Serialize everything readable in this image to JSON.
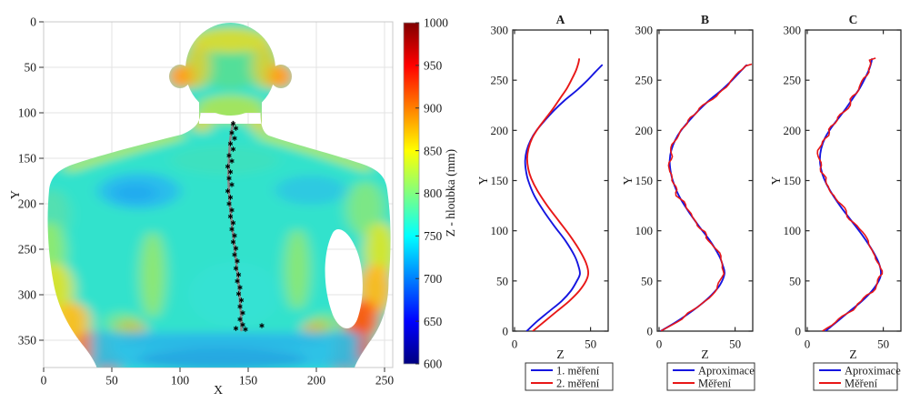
{
  "figure": {
    "description": "Depth map of a human back with detected spine line, plus three vertical profile plots of the spine curve",
    "background": "#ffffff",
    "accent_blue": "#1515E0",
    "accent_red": "#E81717"
  },
  "curves": {
    "m1": [
      [
        0,
        8
      ],
      [
        10,
        15
      ],
      [
        20,
        23
      ],
      [
        30,
        31
      ],
      [
        40,
        37
      ],
      [
        50,
        41
      ],
      [
        57,
        43
      ],
      [
        65,
        42
      ],
      [
        75,
        39.5
      ],
      [
        90,
        33.5
      ],
      [
        105,
        26
      ],
      [
        120,
        19
      ],
      [
        135,
        13
      ],
      [
        150,
        9
      ],
      [
        160,
        7.5
      ],
      [
        170,
        7
      ],
      [
        180,
        8
      ],
      [
        190,
        10.5
      ],
      [
        200,
        14.5
      ],
      [
        210,
        20
      ],
      [
        220,
        26
      ],
      [
        230,
        33
      ],
      [
        240,
        41
      ],
      [
        250,
        48
      ],
      [
        258,
        53
      ],
      [
        265,
        57.5
      ]
    ],
    "m1b": [
      [
        0,
        1
      ],
      [
        8,
        10
      ],
      [
        16,
        18
      ],
      [
        26,
        27
      ],
      [
        36,
        34.5
      ],
      [
        46,
        40
      ],
      [
        57,
        43
      ],
      [
        65,
        42
      ],
      [
        75,
        39.5
      ],
      [
        90,
        33.5
      ],
      [
        105,
        26
      ],
      [
        120,
        19
      ],
      [
        135,
        13
      ],
      [
        150,
        9
      ],
      [
        160,
        7.5
      ],
      [
        170,
        7
      ],
      [
        180,
        8
      ],
      [
        190,
        10.5
      ],
      [
        200,
        14.5
      ],
      [
        210,
        20
      ],
      [
        220,
        26
      ],
      [
        230,
        33
      ],
      [
        240,
        41
      ],
      [
        250,
        48
      ],
      [
        258,
        53
      ],
      [
        265,
        57.5
      ]
    ],
    "m2": [
      [
        0,
        12
      ],
      [
        10,
        20
      ],
      [
        20,
        28
      ],
      [
        30,
        36
      ],
      [
        40,
        42.5
      ],
      [
        50,
        47
      ],
      [
        58,
        48.5
      ],
      [
        68,
        47
      ],
      [
        80,
        43
      ],
      [
        95,
        36.5
      ],
      [
        110,
        29
      ],
      [
        125,
        21.5
      ],
      [
        140,
        15
      ],
      [
        152,
        11
      ],
      [
        162,
        9
      ],
      [
        172,
        8.3
      ],
      [
        182,
        9.2
      ],
      [
        192,
        11.5
      ],
      [
        202,
        15.5
      ],
      [
        212,
        20.5
      ],
      [
        222,
        25.5
      ],
      [
        232,
        30
      ],
      [
        242,
        34.5
      ],
      [
        252,
        38
      ],
      [
        260,
        40.5
      ],
      [
        267,
        42
      ],
      [
        271,
        42.5
      ]
    ]
  },
  "chart_data": [
    {
      "id": "depth-map",
      "type": "heatmap",
      "xlabel": "X",
      "ylabel": "Y",
      "xlim": [
        0,
        256
      ],
      "ylim": [
        0,
        380
      ],
      "y_axis_reversed": true,
      "x_ticks": [
        0,
        50,
        100,
        150,
        200,
        250
      ],
      "y_ticks": [
        0,
        50,
        100,
        150,
        200,
        250,
        300,
        350
      ],
      "colormap": "jet",
      "colorbar": {
        "label": "Z - hloubka (mm)",
        "min": 600,
        "max": 1000,
        "ticks": [
          600,
          650,
          700,
          750,
          800,
          850,
          900,
          950,
          1000
        ]
      },
      "content": "Rear-view depth image of a human back: torso cyan (~740-770 mm), shoulder-blade patches light blue (~720 mm), head green-yellow (~800-850 mm), ears orange (~890 mm), lower arms/elbows orange-red (~900-980 mm), waist band blue-cyan (~730 mm); gray fitted spine line with black asterisk detections",
      "spine_line": [
        [
          139,
          110
        ],
        [
          137,
          128
        ],
        [
          136,
          148
        ],
        [
          135.5,
          168
        ],
        [
          136,
          188
        ],
        [
          137,
          208
        ],
        [
          138.5,
          228
        ],
        [
          140,
          248
        ],
        [
          141.5,
          268
        ],
        [
          143,
          288
        ],
        [
          144,
          308
        ],
        [
          145,
          328
        ],
        [
          145,
          339
        ]
      ],
      "spine_markers": [
        [
          139,
          112
        ],
        [
          141,
          117
        ],
        [
          138,
          122
        ],
        [
          140,
          128
        ],
        [
          137,
          134
        ],
        [
          139,
          140
        ],
        [
          136,
          147
        ],
        [
          138,
          153
        ],
        [
          135,
          159
        ],
        [
          137,
          165
        ],
        [
          136,
          172
        ],
        [
          138,
          179
        ],
        [
          135,
          186
        ],
        [
          137,
          193
        ],
        [
          136,
          200
        ],
        [
          138,
          207
        ],
        [
          137,
          214
        ],
        [
          139,
          221
        ],
        [
          138,
          228
        ],
        [
          140,
          235
        ],
        [
          139,
          242
        ],
        [
          141,
          249
        ],
        [
          140,
          256
        ],
        [
          142,
          263
        ],
        [
          141,
          271
        ],
        [
          143,
          278
        ],
        [
          142,
          285
        ],
        [
          144,
          292
        ],
        [
          143,
          299
        ],
        [
          145,
          306
        ],
        [
          144,
          313
        ],
        [
          146,
          320
        ],
        [
          144,
          327
        ],
        [
          146,
          333
        ],
        [
          141,
          337
        ],
        [
          148,
          338
        ],
        [
          160,
          334
        ]
      ]
    },
    {
      "id": "panel-a",
      "type": "line",
      "title": "A",
      "xlabel": "Z",
      "ylabel": "Y",
      "xlim": [
        0,
        61
      ],
      "ylim": [
        0,
        300
      ],
      "x_ticks": [
        0,
        50
      ],
      "y_ticks": [
        0,
        50,
        100,
        150,
        200,
        250,
        300
      ],
      "legend_position": "below",
      "series": [
        {
          "name": "1. měření",
          "color": "#1515E0",
          "curve": "m1",
          "style": "smooth"
        },
        {
          "name": "2. měření",
          "color": "#E81717",
          "curve": "m2",
          "style": "smooth"
        }
      ]
    },
    {
      "id": "panel-b",
      "type": "line",
      "title": "B",
      "xlabel": "Z",
      "ylabel": "Y",
      "xlim": [
        0,
        61
      ],
      "ylim": [
        0,
        300
      ],
      "x_ticks": [
        0,
        50
      ],
      "y_ticks": [
        0,
        50,
        100,
        150,
        200,
        250,
        300
      ],
      "legend_position": "below",
      "series": [
        {
          "name": "Aproximace",
          "color": "#1515E0",
          "curve": "m1b",
          "style": "smooth"
        },
        {
          "name": "Měření",
          "color": "#E81717",
          "curve": "m1b",
          "style": "noisy",
          "noise": {
            "amplitude": 1.7,
            "seed": 11,
            "step": 3
          },
          "tail_point": [
            266,
            61
          ]
        }
      ]
    },
    {
      "id": "panel-c",
      "type": "line",
      "title": "C",
      "xlabel": "Z",
      "ylabel": "Y",
      "xlim": [
        0,
        61
      ],
      "ylim": [
        0,
        300
      ],
      "x_ticks": [
        0,
        50
      ],
      "y_ticks": [
        0,
        50,
        100,
        150,
        200,
        250,
        300
      ],
      "legend_position": "below",
      "series": [
        {
          "name": "Aproximace",
          "color": "#1515E0",
          "curve": "m2",
          "style": "smooth"
        },
        {
          "name": "Měření",
          "color": "#E81717",
          "curve": "m2",
          "style": "noisy",
          "noise": {
            "amplitude": 1.7,
            "seed": 23,
            "step": 3
          },
          "tail_point": [
            272,
            45
          ]
        }
      ]
    }
  ]
}
